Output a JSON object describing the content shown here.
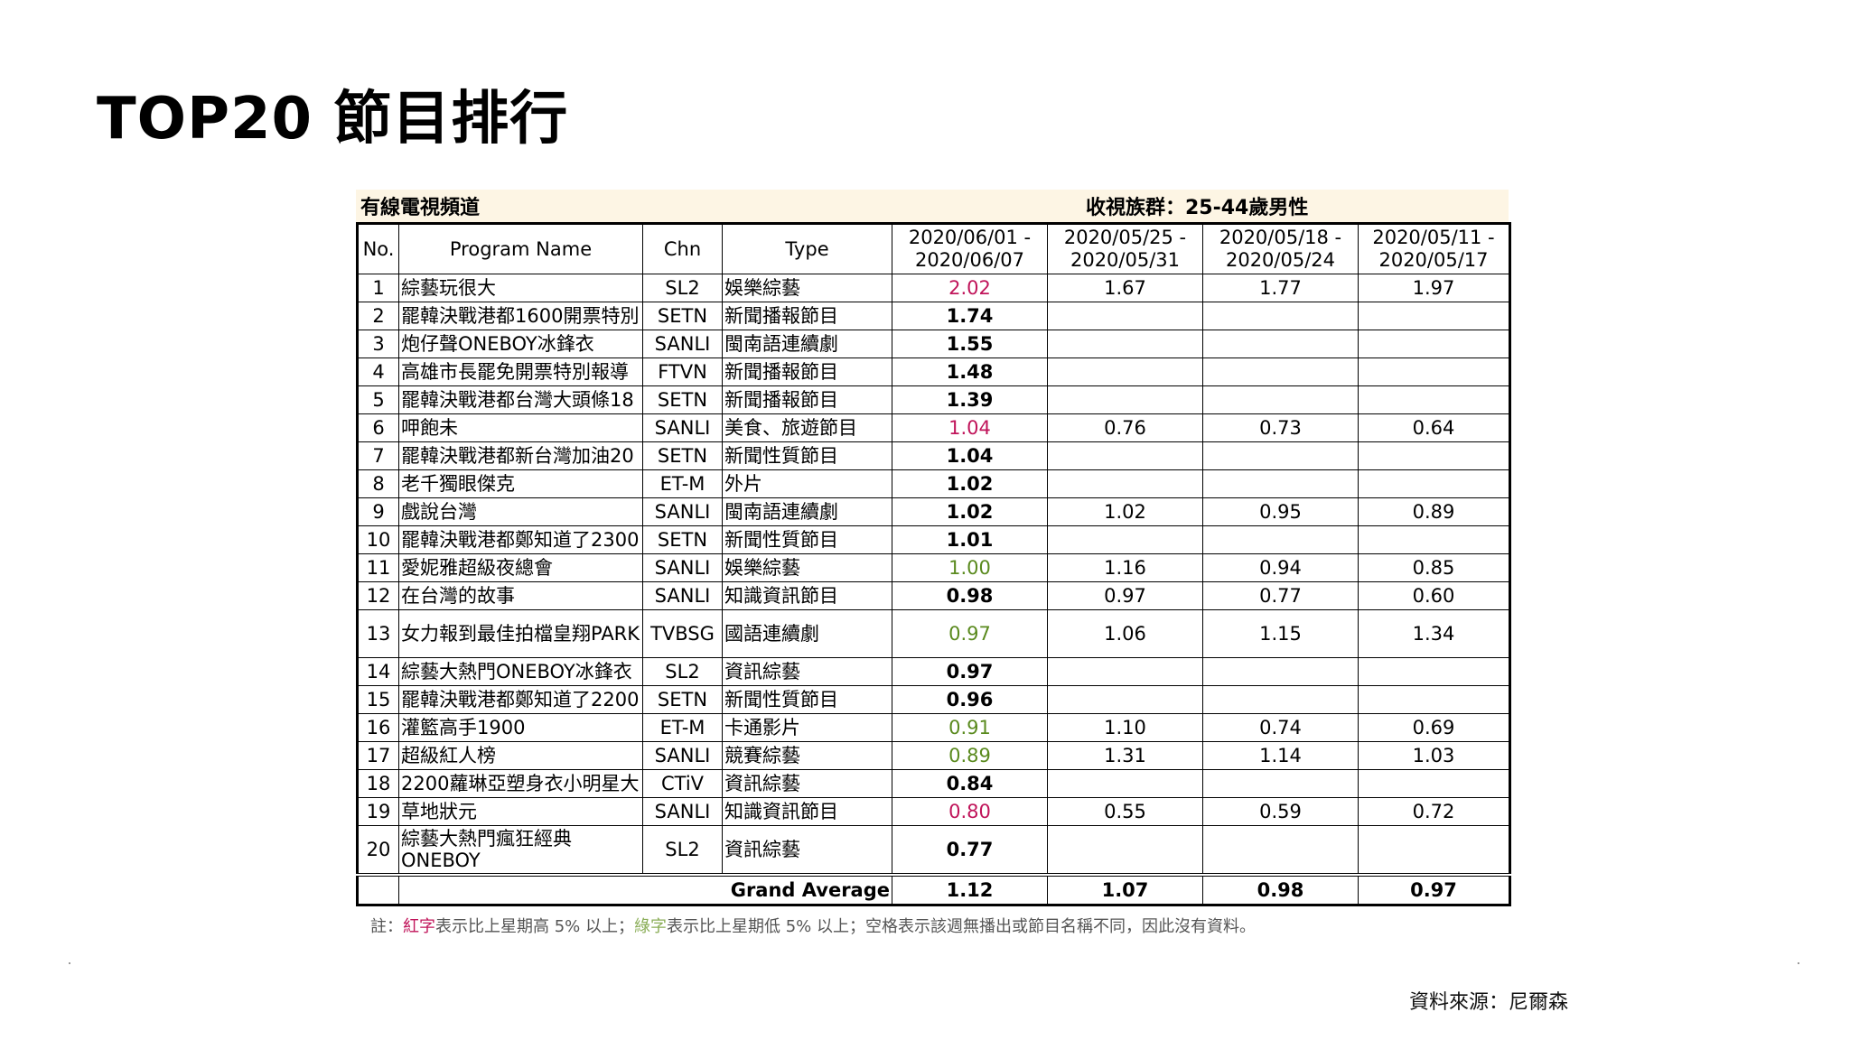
{
  "page": {
    "title": "TOP20 節目排行",
    "table_header_left": "有線電視頻道",
    "table_header_right": "收視族群：25-44歲男性",
    "note": {
      "prefix": "註：",
      "red_word": "紅字",
      "mid1": "表示比上星期高 5% 以上；",
      "green_word": "綠字",
      "mid2": "表示比上星期低 5% 以上；空格表示該週無播出或節目名稱不同，因此沒有資料。"
    },
    "source": "資料來源：尼爾森"
  },
  "columns": {
    "no": "No.",
    "program": "Program Name",
    "chn": "Chn",
    "type": "Type",
    "week1_a": "2020/06/01 -",
    "week1_b": "2020/06/07",
    "week2_a": "2020/05/25 -",
    "week2_b": "2020/05/31",
    "week3_a": "2020/05/18 -",
    "week3_b": "2020/05/24",
    "week4_a": "2020/05/11 -",
    "week4_b": "2020/05/17"
  },
  "rows": [
    {
      "no": "1",
      "name": "綜藝玩很大",
      "chn": "SL2",
      "type": "娛樂綜藝",
      "w1": "2.02",
      "w1_color": "red",
      "w2": "1.67",
      "w3": "1.77",
      "w4": "1.97"
    },
    {
      "no": "2",
      "name": "罷韓決戰港都1600開票特別",
      "chn": "SETN",
      "type": "新聞播報節目",
      "w1": "1.74",
      "w1_color": "",
      "w2": "",
      "w3": "",
      "w4": ""
    },
    {
      "no": "3",
      "name": "炮仔聲ONEBOY冰鋒衣",
      "chn": "SANLI",
      "type": "閩南語連續劇",
      "w1": "1.55",
      "w1_color": "",
      "w2": "",
      "w3": "",
      "w4": ""
    },
    {
      "no": "4",
      "name": "高雄市長罷免開票特別報導",
      "chn": "FTVN",
      "type": "新聞播報節目",
      "w1": "1.48",
      "w1_color": "",
      "w2": "",
      "w3": "",
      "w4": ""
    },
    {
      "no": "5",
      "name": "罷韓決戰港都台灣大頭條18",
      "chn": "SETN",
      "type": "新聞播報節目",
      "w1": "1.39",
      "w1_color": "",
      "w2": "",
      "w3": "",
      "w4": ""
    },
    {
      "no": "6",
      "name": "呷飽未",
      "chn": "SANLI",
      "type": "美食、旅遊節目",
      "w1": "1.04",
      "w1_color": "red",
      "w2": "0.76",
      "w3": "0.73",
      "w4": "0.64"
    },
    {
      "no": "7",
      "name": "罷韓決戰港都新台灣加油20",
      "chn": "SETN",
      "type": "新聞性質節目",
      "w1": "1.04",
      "w1_color": "",
      "w2": "",
      "w3": "",
      "w4": ""
    },
    {
      "no": "8",
      "name": "老千獨眼傑克",
      "chn": "ET-M",
      "type": "外片",
      "w1": "1.02",
      "w1_color": "",
      "w2": "",
      "w3": "",
      "w4": ""
    },
    {
      "no": "9",
      "name": "戲說台灣",
      "chn": "SANLI",
      "type": "閩南語連續劇",
      "w1": "1.02",
      "w1_color": "",
      "w2": "1.02",
      "w3": "0.95",
      "w4": "0.89"
    },
    {
      "no": "10",
      "name": "罷韓決戰港都鄭知道了2300",
      "chn": "SETN",
      "type": "新聞性質節目",
      "w1": "1.01",
      "w1_color": "",
      "w2": "",
      "w3": "",
      "w4": ""
    },
    {
      "no": "11",
      "name": "愛妮雅超級夜總會",
      "chn": "SANLI",
      "type": "娛樂綜藝",
      "w1": "1.00",
      "w1_color": "green",
      "w2": "1.16",
      "w3": "0.94",
      "w4": "0.85"
    },
    {
      "no": "12",
      "name": "在台灣的故事",
      "chn": "SANLI",
      "type": "知識資訊節目",
      "w1": "0.98",
      "w1_color": "",
      "w2": "0.97",
      "w3": "0.77",
      "w4": "0.60"
    },
    {
      "no": "13",
      "name": "女力報到最佳拍檔皇翔PARK",
      "chn": "TVBSG",
      "type": "國語連續劇",
      "w1": "0.97",
      "w1_color": "green",
      "w2": "1.06",
      "w3": "1.15",
      "w4": "1.34",
      "tall": true
    },
    {
      "no": "14",
      "name": "綜藝大熱門ONEBOY冰鋒衣",
      "chn": "SL2",
      "type": "資訊綜藝",
      "w1": "0.97",
      "w1_color": "",
      "w2": "",
      "w3": "",
      "w4": ""
    },
    {
      "no": "15",
      "name": "罷韓決戰港都鄭知道了2200",
      "chn": "SETN",
      "type": "新聞性質節目",
      "w1": "0.96",
      "w1_color": "",
      "w2": "",
      "w3": "",
      "w4": ""
    },
    {
      "no": "16",
      "name": "灌籃高手1900",
      "chn": "ET-M",
      "type": "卡通影片",
      "w1": "0.91",
      "w1_color": "green",
      "w2": "1.10",
      "w3": "0.74",
      "w4": "0.69"
    },
    {
      "no": "17",
      "name": "超級紅人榜",
      "chn": "SANLI",
      "type": "競賽綜藝",
      "w1": "0.89",
      "w1_color": "green",
      "w2": "1.31",
      "w3": "1.14",
      "w4": "1.03"
    },
    {
      "no": "18",
      "name": "2200蘿琳亞塑身衣小明星大",
      "chn": "CTiV",
      "type": "資訊綜藝",
      "w1": "0.84",
      "w1_color": "",
      "w2": "",
      "w3": "",
      "w4": ""
    },
    {
      "no": "19",
      "name": "草地狀元",
      "chn": "SANLI",
      "type": "知識資訊節目",
      "w1": "0.80",
      "w1_color": "red",
      "w2": "0.55",
      "w3": "0.59",
      "w4": "0.72"
    },
    {
      "no": "20",
      "name": "綜藝大熱門瘋狂經典ONEBOY",
      "chn": "SL2",
      "type": "資訊綜藝",
      "w1": "0.77",
      "w1_color": "",
      "w2": "",
      "w3": "",
      "w4": "",
      "tall": true
    }
  ],
  "grand_average": {
    "label": "Grand Average",
    "w1": "1.12",
    "w2": "1.07",
    "w3": "0.98",
    "w4": "0.97"
  }
}
